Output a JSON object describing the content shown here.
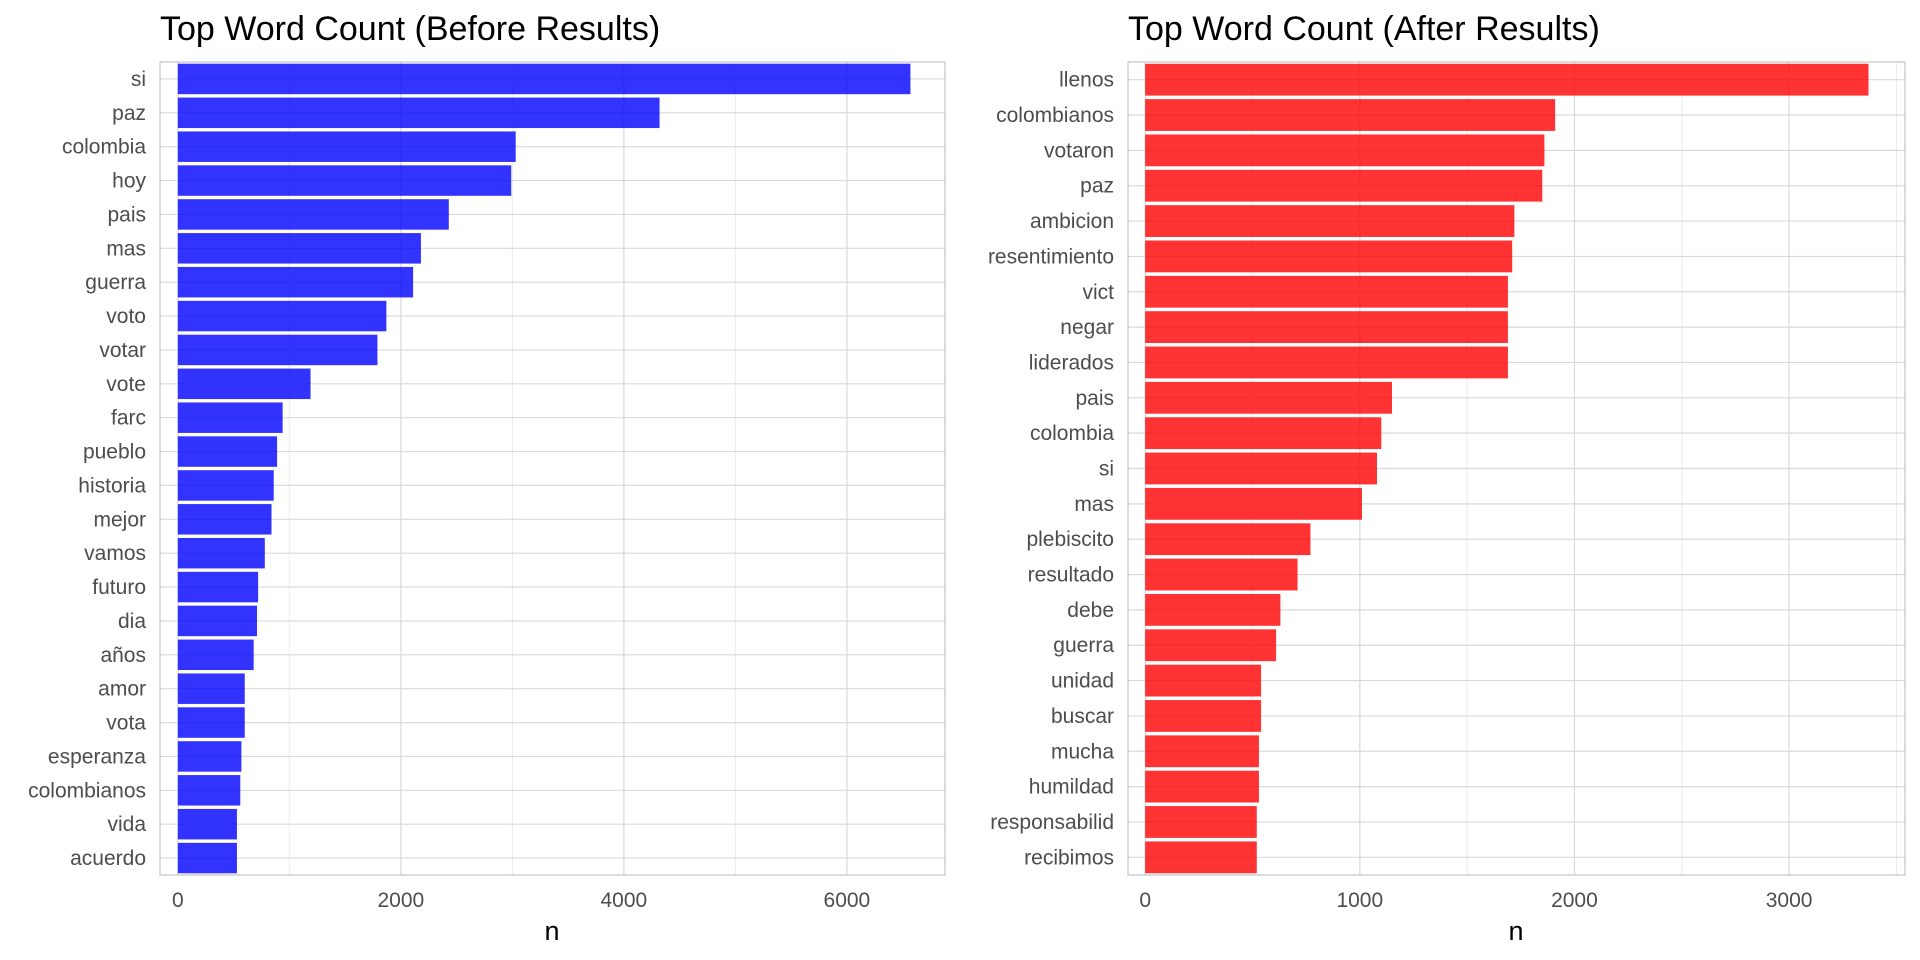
{
  "chart_data": [
    {
      "type": "bar",
      "orientation": "horizontal",
      "title": "Top Word Count (Before Results)",
      "xlabel": "n",
      "ylabel": "",
      "xlim": [
        -160,
        6880
      ],
      "xticks": [
        0,
        2000,
        4000,
        6000
      ],
      "tick_labels": [
        "0",
        "2000",
        "4000",
        "6000"
      ],
      "grid": true,
      "color": "#0000ff",
      "categories": [
        "si",
        "paz",
        "colombia",
        "hoy",
        "pais",
        "mas",
        "guerra",
        "voto",
        "votar",
        "vote",
        "farc",
        "pueblo",
        "historia",
        "mejor",
        "vamos",
        "futuro",
        "dia",
        "años",
        "amor",
        "vota",
        "esperanza",
        "colombianos",
        "vida",
        "acuerdo"
      ],
      "values": [
        6570,
        4320,
        3030,
        2990,
        2430,
        2180,
        2110,
        1870,
        1790,
        1190,
        940,
        890,
        860,
        840,
        780,
        720,
        710,
        680,
        600,
        600,
        570,
        560,
        530,
        530
      ]
    },
    {
      "type": "bar",
      "orientation": "horizontal",
      "title": "Top Word Count (After Results)",
      "xlabel": "n",
      "ylabel": "",
      "xlim": [
        -80,
        3540
      ],
      "xticks": [
        0,
        1000,
        2000,
        3000
      ],
      "tick_labels": [
        "0",
        "1000",
        "2000",
        "3000"
      ],
      "grid": true,
      "color": "#ff0000",
      "categories": [
        "llenos",
        "colombianos",
        "votaron",
        "paz",
        "ambicion",
        "resentimiento",
        "vict",
        "negar",
        "liderados",
        "pais",
        "colombia",
        "si",
        "mas",
        "plebiscito",
        "resultado",
        "debe",
        "guerra",
        "unidad",
        "buscar",
        "mucha",
        "humildad",
        "responsabilid",
        "recibimos"
      ],
      "values": [
        3370,
        1910,
        1860,
        1850,
        1720,
        1710,
        1690,
        1690,
        1690,
        1150,
        1100,
        1080,
        1010,
        770,
        710,
        630,
        610,
        540,
        540,
        530,
        530,
        520,
        520
      ]
    }
  ]
}
